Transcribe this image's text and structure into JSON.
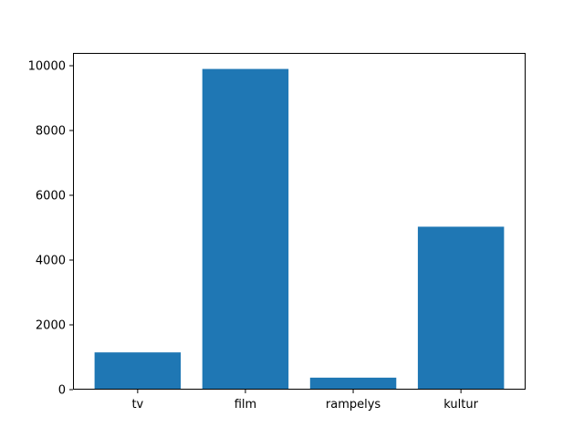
{
  "chart_data": {
    "type": "bar",
    "title": "",
    "xlabel": "",
    "ylabel": "",
    "categories": [
      "tv",
      "film",
      "rampelys",
      "kultur"
    ],
    "values": [
      1150,
      9900,
      370,
      5030
    ],
    "ylim": [
      0,
      10395
    ],
    "yticks": [
      0,
      2000,
      4000,
      6000,
      8000,
      10000
    ],
    "yticks_labels": [
      "0",
      "2000",
      "4000",
      "6000",
      "8000",
      "10000"
    ],
    "grid": false,
    "legend": "none",
    "colors": {
      "bar": "#1f77b4",
      "axes": "#000000",
      "background": "#ffffff"
    }
  }
}
